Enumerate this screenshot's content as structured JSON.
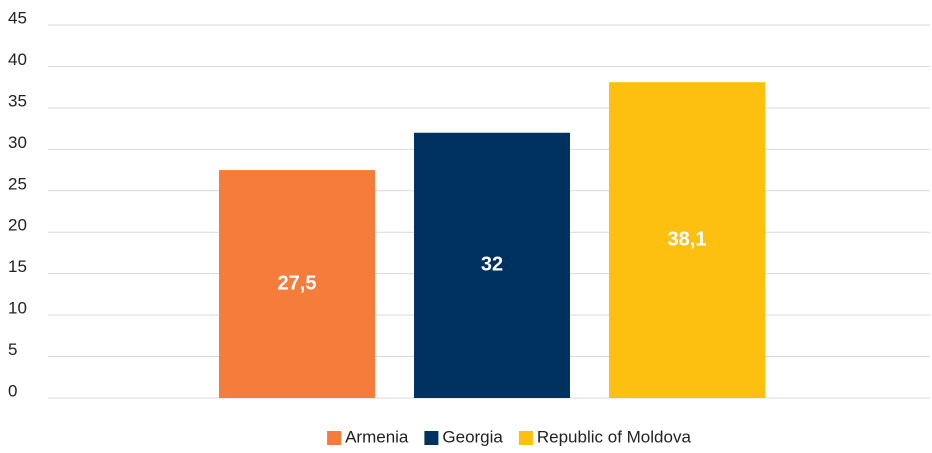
{
  "chart_data": {
    "type": "bar",
    "categories": [
      null
    ],
    "series": [
      {
        "name": "Armenia",
        "color": "#f57c3b",
        "values": [
          27.5
        ],
        "value_labels": [
          "27,5"
        ]
      },
      {
        "name": "Georgia",
        "color": "#003261",
        "values": [
          32
        ]
      },
      {
        "name": "Republic of Moldova",
        "color": "#fdc010",
        "values": [
          38.1
        ],
        "value_labels": [
          "38,1"
        ]
      }
    ],
    "ylim": [
      0,
      45
    ],
    "yticks": [
      0,
      5,
      10,
      15,
      20,
      25,
      30,
      35,
      40,
      45
    ],
    "grid": true,
    "legend": "bottom"
  }
}
